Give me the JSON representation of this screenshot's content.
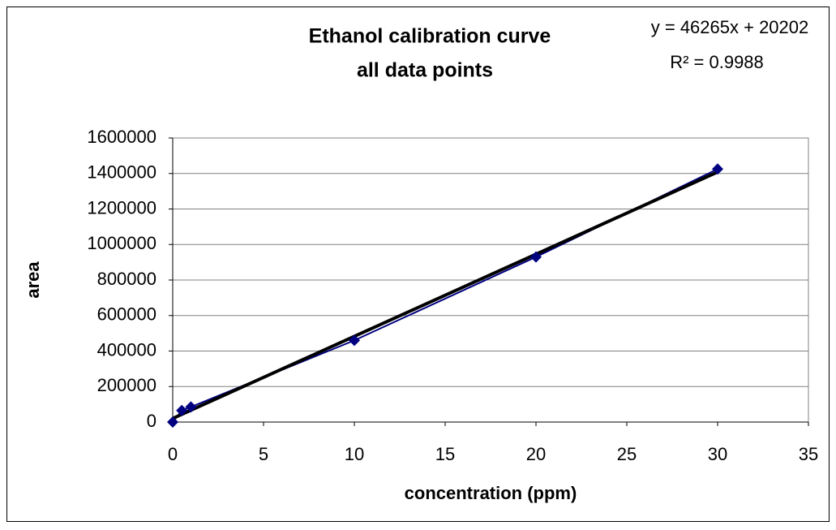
{
  "chart_data": {
    "type": "scatter",
    "title": [
      "Ethanol calibration curve",
      "all data points"
    ],
    "x_label": "concentration (ppm)",
    "y_label": "area",
    "x": [
      0,
      0.5,
      1,
      10,
      20,
      30
    ],
    "series": [
      {
        "color": "#000080",
        "values": [
          0,
          65000,
          85000,
          460000,
          930000,
          1425000
        ]
      }
    ],
    "trendline": {
      "slope": 46265,
      "intercept": 20202,
      "color": "#000000"
    },
    "annotations": [
      "y = 46265x + 20202",
      "R² = 0.9988"
    ],
    "xlim": [
      0,
      35
    ],
    "xticks": [
      0,
      5,
      10,
      15,
      20,
      25,
      30,
      35
    ],
    "ylim": [
      0,
      1600000
    ],
    "yticks": [
      0,
      200000,
      400000,
      600000,
      800000,
      1000000,
      1200000,
      1400000,
      1600000
    ],
    "grid": true
  }
}
